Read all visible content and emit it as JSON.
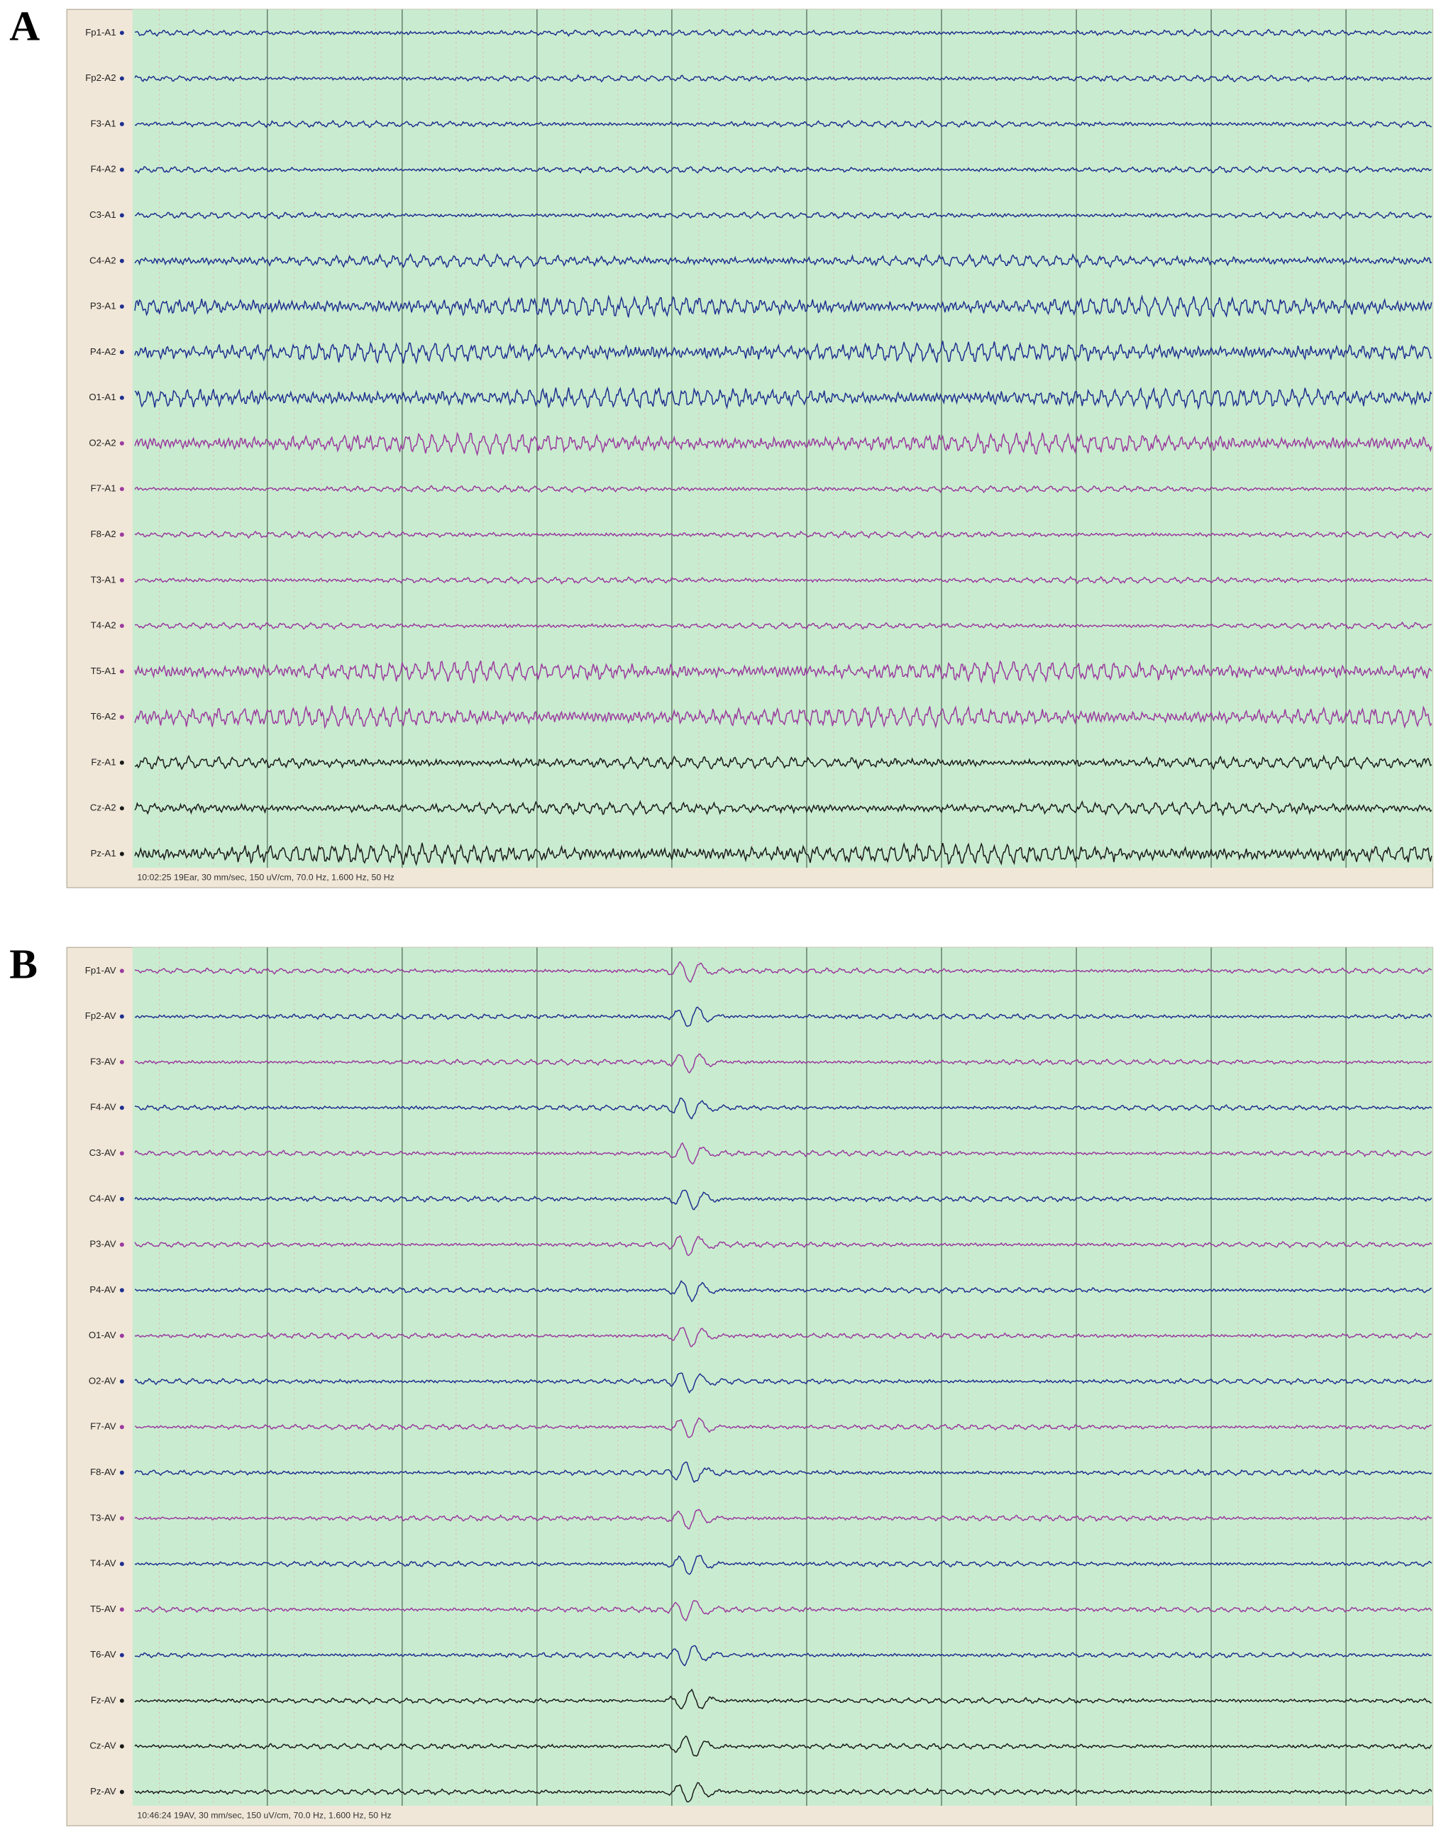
{
  "panels": [
    {
      "label": "A",
      "channels": [
        "Fp1-A1",
        "Fp2-A2",
        "F3-A1",
        "F4-A2",
        "C3-A1",
        "C4-A2",
        "P3-A1",
        "P4-A2",
        "O1-A1",
        "O2-A2",
        "F7-A1",
        "F8-A2",
        "T3-A1",
        "T4-A2",
        "T5-A1",
        "T6-A2",
        "Fz-A1",
        "Cz-A2",
        "Pz-A1"
      ],
      "status": "10:02:25 19Ear, 30 mm/sec, 150 uV/cm, 70.0 Hz, 1.600 Hz, 50 Hz"
    },
    {
      "label": "B",
      "channels": [
        "Fp1-AV",
        "Fp2-AV",
        "F3-AV",
        "F4-AV",
        "C3-AV",
        "C4-AV",
        "P3-AV",
        "P4-AV",
        "O1-AV",
        "O2-AV",
        "F7-AV",
        "F8-AV",
        "T3-AV",
        "T4-AV",
        "T5-AV",
        "T6-AV",
        "Fz-AV",
        "Cz-AV",
        "Pz-AV"
      ],
      "status": "10:46:24 19AV, 30 mm/sec, 150 uV/cm, 70.0 Hz, 1.600 Hz, 50 Hz"
    }
  ]
}
